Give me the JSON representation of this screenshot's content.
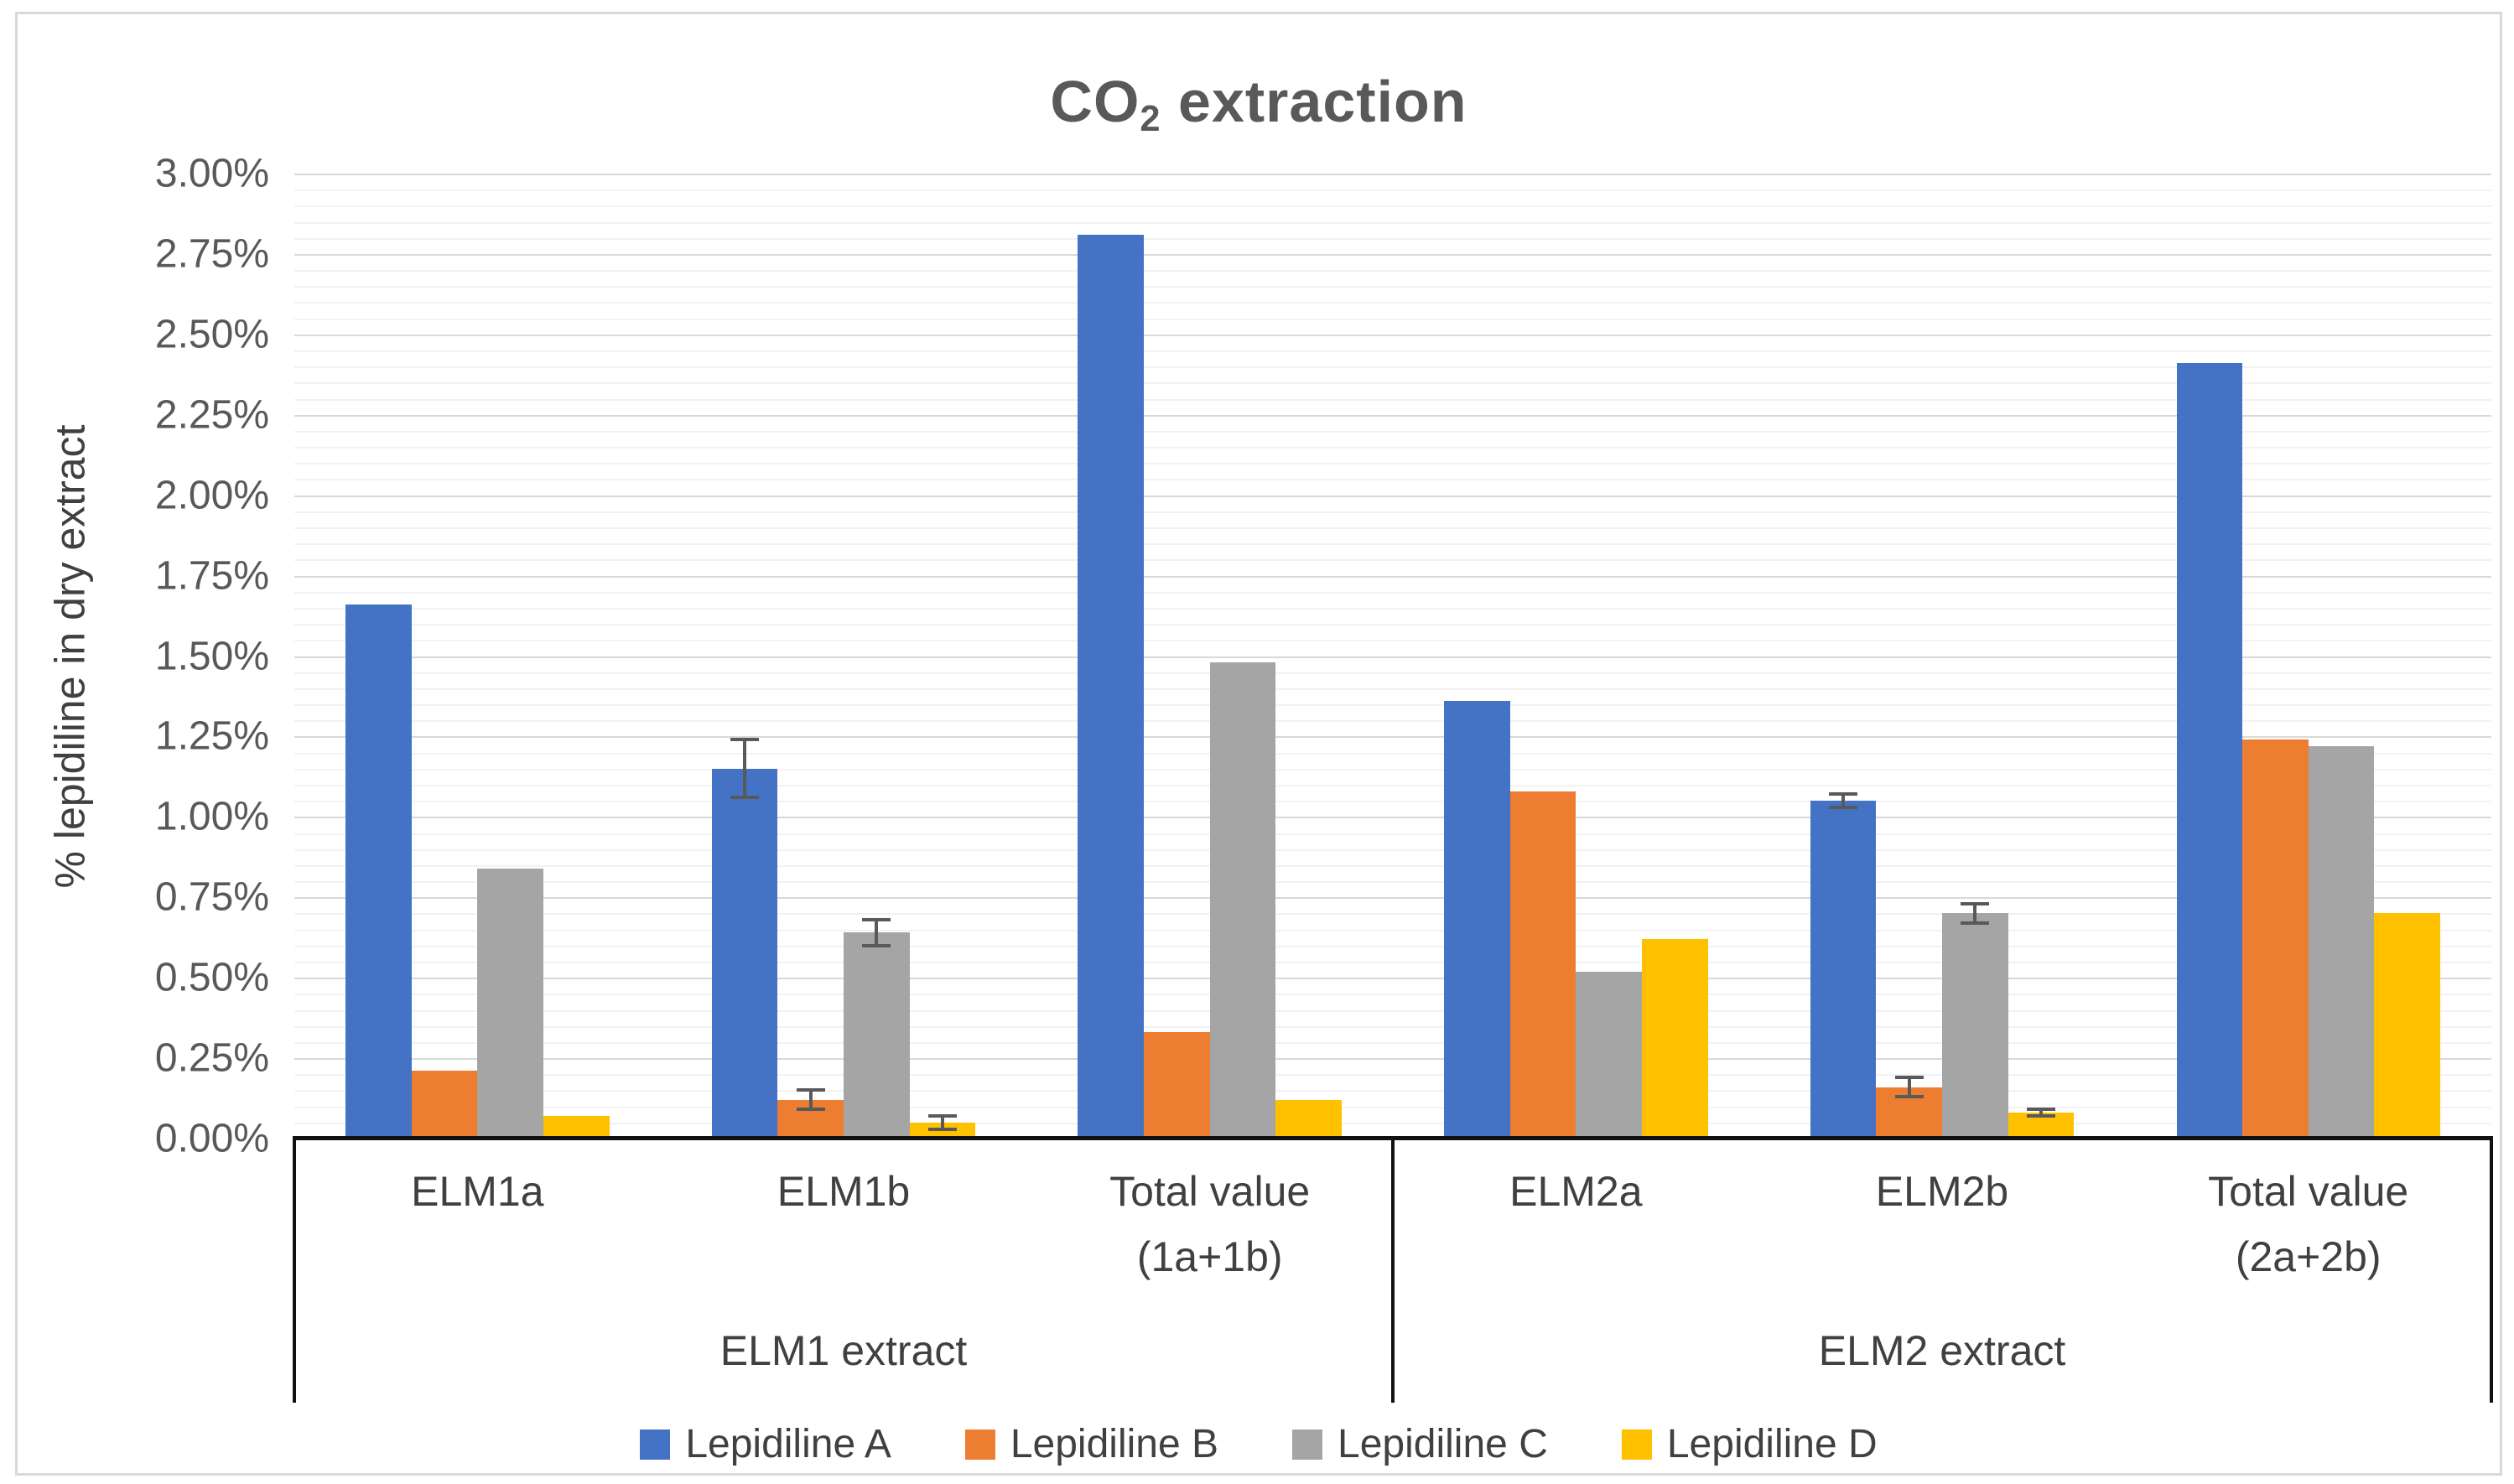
{
  "figure": {
    "title": {
      "prefix": "CO",
      "subscript": "2",
      "suffix": " extraction",
      "text_color": "#595959"
    },
    "y_axis_title": "% lepidiline in dry extract",
    "colors": {
      "axis_line": "#111111",
      "major_gridline": "#d9d9d9",
      "minor_gridline": "#f2f2f2",
      "error_bar": "#595959",
      "label_text": "#404040",
      "tick_text": "#595959",
      "figure_border": "#d9d9d9"
    }
  },
  "chart_data": {
    "type": "bar",
    "title": "CO2 extraction",
    "xlabel": "",
    "ylabel": "% lepidiline in dry extract",
    "values_unit": "percent",
    "ylim": [
      0,
      3.0
    ],
    "y_major_step": 0.25,
    "y_minor_step": 0.05,
    "grid": "horizontal major + minor",
    "legend_position": "bottom",
    "y_tick_labels": [
      "3.00%",
      "2.75%",
      "2.50%",
      "2.25%",
      "2.00%",
      "1.75%",
      "1.50%",
      "1.25%",
      "1.00%",
      "0.75%",
      "0.50%",
      "0.25%",
      "0.00%"
    ],
    "categories": [
      {
        "lines": [
          "ELM1a"
        ]
      },
      {
        "lines": [
          "ELM1b"
        ]
      },
      {
        "lines": [
          "Total value",
          "(1a+1b)"
        ]
      },
      {
        "lines": [
          "ELM2a"
        ]
      },
      {
        "lines": [
          "ELM2b"
        ]
      },
      {
        "lines": [
          "Total value",
          "(2a+2b)"
        ]
      }
    ],
    "category_groups": [
      {
        "label": "ELM1 extract",
        "count": 3
      },
      {
        "label": "ELM2 extract",
        "count": 3
      }
    ],
    "series": [
      {
        "name": "Lepidiline A",
        "color": "#4472C4",
        "values": [
          1.66,
          1.15,
          2.81,
          1.36,
          1.05,
          2.41
        ],
        "errors": [
          null,
          0.09,
          null,
          null,
          0.02,
          null
        ]
      },
      {
        "name": "Lepidiline B",
        "color": "#ED7D31",
        "values": [
          0.21,
          0.12,
          0.33,
          1.08,
          0.16,
          1.24
        ],
        "errors": [
          null,
          0.03,
          null,
          null,
          0.03,
          null
        ]
      },
      {
        "name": "Lepidiline C",
        "color": "#A5A5A5",
        "values": [
          0.84,
          0.64,
          1.48,
          0.52,
          0.7,
          1.22
        ],
        "errors": [
          null,
          0.04,
          null,
          null,
          0.03,
          null
        ]
      },
      {
        "name": "Lepidiline D",
        "color": "#FFC000",
        "values": [
          0.07,
          0.05,
          0.12,
          0.62,
          0.08,
          0.7
        ],
        "errors": [
          null,
          0.02,
          null,
          null,
          0.01,
          null
        ]
      }
    ]
  }
}
